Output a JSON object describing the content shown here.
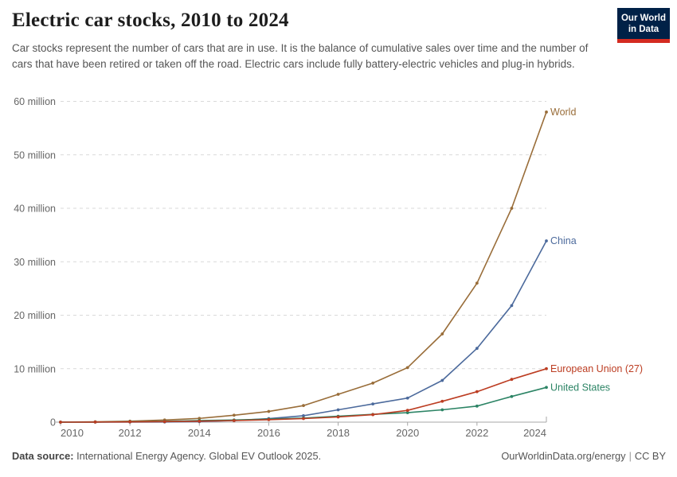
{
  "header": {
    "title": "Electric car stocks, 2010 to 2024",
    "subtitle": "Car stocks represent the number of cars that are in use. It is the balance of cumulative sales over time and the number of cars that have been retired or taken off the road. Electric cars include fully battery-electric vehicles and plug-in hybrids.",
    "logo": {
      "line1": "Our World",
      "line2": "in Data",
      "bg_color": "#002147",
      "bar_color": "#D42B21",
      "text_color": "#ffffff"
    }
  },
  "chart_data": {
    "type": "line",
    "title": "Electric car stocks, 2010 to 2024",
    "x": [
      2010,
      2011,
      2012,
      2013,
      2014,
      2015,
      2016,
      2017,
      2018,
      2019,
      2020,
      2021,
      2022,
      2023,
      2024
    ],
    "x_tick_labels": [
      "2010",
      "2012",
      "2014",
      "2016",
      "2018",
      "2020",
      "2022",
      "2024"
    ],
    "y_axis": {
      "unit": "million",
      "ticks": [
        0,
        10,
        20,
        30,
        40,
        50,
        60
      ],
      "zero_label": "0",
      "tick_suffix": " million",
      "ylim": [
        0,
        60
      ],
      "gridlines": "dashed"
    },
    "legend_position": "end-of-line-labels",
    "series": [
      {
        "name": "World",
        "color": "#996D39",
        "values": [
          0.02,
          0.07,
          0.18,
          0.4,
          0.7,
          1.3,
          2.0,
          3.1,
          5.2,
          7.3,
          10.2,
          16.5,
          26,
          40,
          58
        ]
      },
      {
        "name": "China",
        "color": "#4C6A9C",
        "values": [
          0.0,
          0.01,
          0.02,
          0.03,
          0.1,
          0.3,
          0.66,
          1.2,
          2.3,
          3.4,
          4.5,
          7.8,
          13.8,
          21.8,
          33.9
        ]
      },
      {
        "name": "European Union (27)",
        "color": "#BC3D22",
        "values": [
          0.0,
          0.02,
          0.05,
          0.1,
          0.18,
          0.3,
          0.46,
          0.67,
          0.97,
          1.4,
          2.2,
          3.9,
          5.7,
          8.0,
          10.0
        ]
      },
      {
        "name": "United States",
        "color": "#2C8465",
        "values": [
          0.0,
          0.02,
          0.07,
          0.17,
          0.29,
          0.4,
          0.56,
          0.76,
          1.1,
          1.45,
          1.77,
          2.3,
          3.0,
          4.8,
          6.5
        ]
      }
    ]
  },
  "footer": {
    "data_source_label": "Data source:",
    "data_source_text": " International Energy Agency. Global EV Outlook 2025.",
    "site_text": "OurWorldinData.org/energy",
    "separator": "|",
    "license_text": "CC BY"
  }
}
